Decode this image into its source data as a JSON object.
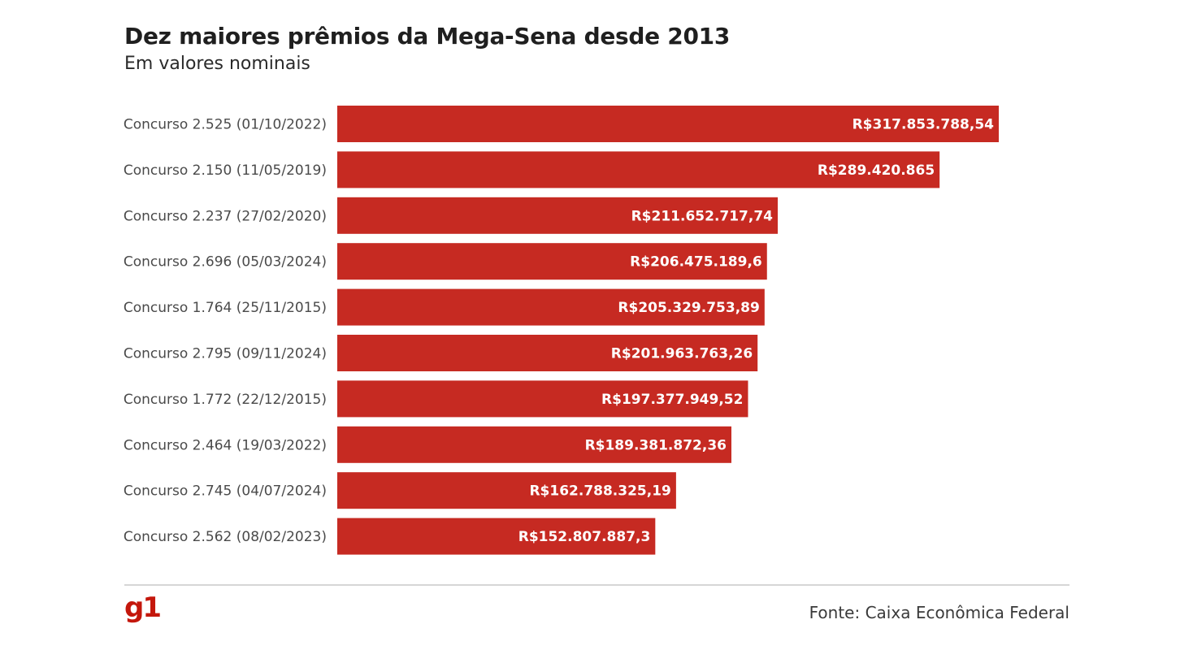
{
  "brand": {
    "logo_text": "g1",
    "accent_color": "#c62a22"
  },
  "source": "Fonte: Caixa Econômica Federal",
  "chart_data": {
    "type": "bar",
    "orientation": "horizontal",
    "title": "Dez maiores prêmios da Mega-Sena desde 2013",
    "subtitle": "Em valores nominais",
    "categories": [
      "Concurso 2.525 (01/10/2022)",
      "Concurso 2.150 (11/05/2019)",
      "Concurso 2.237 (27/02/2020)",
      "Concurso 2.696 (05/03/2024)",
      "Concurso 1.764 (25/11/2015)",
      "Concurso 2.795 (09/11/2024)",
      "Concurso 1.772 (22/12/2015)",
      "Concurso 2.464 (19/03/2022)",
      "Concurso 2.745 (04/07/2024)",
      "Concurso 2.562 (08/02/2023)"
    ],
    "values": [
      317853788.54,
      289420865,
      211652717.74,
      206475189.6,
      205329753.89,
      201963763.26,
      197377949.52,
      189381872.36,
      162788325.19,
      152807887.3
    ],
    "value_labels": [
      "R$317.853.788,54",
      "R$289.420.865",
      "R$211.652.717,74",
      "R$206.475.189,6",
      "R$205.329.753,89",
      "R$201.963.763,26",
      "R$197.377.949,52",
      "R$189.381.872,36",
      "R$162.788.325,19",
      "R$152.807.887,3"
    ],
    "bar_color": "#c62a22",
    "grid": false,
    "xlabel": "",
    "ylabel": ""
  }
}
